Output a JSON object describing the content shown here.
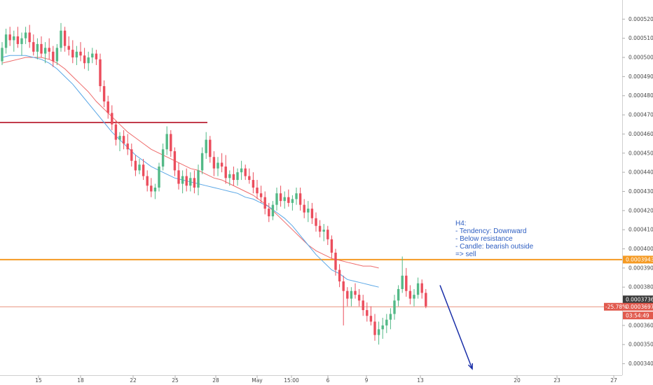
{
  "chart_data": {
    "type": "candlestick",
    "title": "",
    "y_range": [
      0.000334,
      0.00053
    ],
    "y_ticks": [
      "0.00034000",
      "0.00035000",
      "0.00036000",
      "0.00038000",
      "0.00039000",
      "0.00040000",
      "0.00041000",
      "0.00042000",
      "0.00043000",
      "0.00044000",
      "0.00045000",
      "0.00046000",
      "0.00047000",
      "0.00048000",
      "0.00049000",
      "0.00050000",
      "0.00051000",
      "0.00052000"
    ],
    "x_ticks": [
      "15",
      "18",
      "22",
      "25",
      "28",
      "May",
      "15:00",
      "6",
      "9",
      "13",
      "20",
      "23",
      "27"
    ],
    "grid": false,
    "bull_color": "#53b987",
    "bear_color": "#eb4d5c",
    "ma_fast_color": "#5aa7e6",
    "ma_slow_color": "#ee6a6a",
    "candles": [
      [
        0.000498,
        0.000508,
        0.000496,
        0.000505
      ],
      [
        0.000505,
        0.000515,
        0.000502,
        0.000512
      ],
      [
        0.000512,
        0.000516,
        0.000506,
        0.000509
      ],
      [
        0.000509,
        0.000514,
        0.000503,
        0.000511
      ],
      [
        0.000511,
        0.000516,
        0.000505,
        0.000507
      ],
      [
        0.000507,
        0.000513,
        0.000501,
        0.00051
      ],
      [
        0.00051,
        0.000516,
        0.000507,
        0.000513
      ],
      [
        0.000513,
        0.000517,
        0.000505,
        0.000508
      ],
      [
        0.000508,
        0.000512,
        0.000501,
        0.000503
      ],
      [
        0.000503,
        0.00051,
        0.000499,
        0.000507
      ],
      [
        0.000507,
        0.000511,
        0.0005,
        0.000502
      ],
      [
        0.000502,
        0.000508,
        0.000497,
        0.000505
      ],
      [
        0.000505,
        0.00051,
        0.000499,
        0.000503
      ],
      [
        0.000503,
        0.000506,
        0.000495,
        0.000498
      ],
      [
        0.000498,
        0.000507,
        0.000496,
        0.000505
      ],
      [
        0.000505,
        0.000518,
        0.000503,
        0.000514
      ],
      [
        0.000514,
        0.000516,
        0.000503,
        0.000506
      ],
      [
        0.000506,
        0.000511,
        0.000501,
        0.000504
      ],
      [
        0.000504,
        0.000509,
        0.000497,
        0.0005
      ],
      [
        0.0005,
        0.000506,
        0.000496,
        0.000503
      ],
      [
        0.000503,
        0.000508,
        0.000498,
        0.000501
      ],
      [
        0.000501,
        0.000505,
        0.000494,
        0.000497
      ],
      [
        0.000497,
        0.000503,
        0.000493,
        0.0005
      ],
      [
        0.0005,
        0.000505,
        0.000497,
        0.000502
      ],
      [
        0.000502,
        0.000504,
        0.000496,
        0.000499
      ],
      [
        0.000499,
        0.000502,
        0.000482,
        0.000485
      ],
      [
        0.000485,
        0.000488,
        0.000474,
        0.000477
      ],
      [
        0.000477,
        0.00048,
        0.000468,
        0.000471
      ],
      [
        0.000471,
        0.000475,
        0.000462,
        0.000465
      ],
      [
        0.000465,
        0.000467,
        0.000454,
        0.000457
      ],
      [
        0.000457,
        0.000461,
        0.000451,
        0.000459
      ],
      [
        0.000459,
        0.000462,
        0.000452,
        0.000455
      ],
      [
        0.000455,
        0.00046,
        0.000449,
        0.000452
      ],
      [
        0.000452,
        0.000455,
        0.000443,
        0.000446
      ],
      [
        0.000446,
        0.000449,
        0.000438,
        0.000441
      ],
      [
        0.000441,
        0.000447,
        0.000439,
        0.000444
      ],
      [
        0.000444,
        0.000447,
        0.000436,
        0.000438
      ],
      [
        0.000438,
        0.000441,
        0.00043,
        0.000433
      ],
      [
        0.000433,
        0.000437,
        0.000427,
        0.00043
      ],
      [
        0.00043,
        0.000434,
        0.000426,
        0.000432
      ],
      [
        0.000432,
        0.000445,
        0.00043,
        0.000443
      ],
      [
        0.000443,
        0.000455,
        0.000441,
        0.000452
      ],
      [
        0.000452,
        0.000464,
        0.000449,
        0.00046
      ],
      [
        0.00046,
        0.000462,
        0.000448,
        0.000451
      ],
      [
        0.000451,
        0.000453,
        0.000438,
        0.000441
      ],
      [
        0.000441,
        0.000445,
        0.000431,
        0.000434
      ],
      [
        0.000434,
        0.000441,
        0.000429,
        0.000438
      ],
      [
        0.000438,
        0.000442,
        0.00043,
        0.000433
      ],
      [
        0.000433,
        0.00044,
        0.00043,
        0.000437
      ],
      [
        0.000437,
        0.000441,
        0.000429,
        0.000432
      ],
      [
        0.000432,
        0.000444,
        0.000428,
        0.000441
      ],
      [
        0.000441,
        0.000453,
        0.000439,
        0.00045
      ],
      [
        0.00045,
        0.000461,
        0.000447,
        0.000457
      ],
      [
        0.000457,
        0.000459,
        0.000445,
        0.000448
      ],
      [
        0.000448,
        0.000451,
        0.000438,
        0.000442
      ],
      [
        0.000442,
        0.000448,
        0.000438,
        0.000445
      ],
      [
        0.000445,
        0.00045,
        0.00044,
        0.000443
      ],
      [
        0.000443,
        0.000449,
        0.000434,
        0.000437
      ],
      [
        0.000437,
        0.000441,
        0.000433,
        0.000439
      ],
      [
        0.000439,
        0.000443,
        0.000433,
        0.000436
      ],
      [
        0.000436,
        0.000442,
        0.000433,
        0.00044
      ],
      [
        0.00044,
        0.000446,
        0.000436,
        0.000442
      ],
      [
        0.000442,
        0.000444,
        0.000436,
        0.000438
      ],
      [
        0.000438,
        0.000442,
        0.000434,
        0.000436
      ],
      [
        0.000436,
        0.00044,
        0.000429,
        0.000432
      ],
      [
        0.000432,
        0.000436,
        0.000426,
        0.000429
      ],
      [
        0.000429,
        0.000433,
        0.000424,
        0.000427
      ],
      [
        0.000427,
        0.00043,
        0.000418,
        0.000421
      ],
      [
        0.000421,
        0.000424,
        0.000414,
        0.000417
      ],
      [
        0.000417,
        0.000425,
        0.000415,
        0.000423
      ],
      [
        0.000423,
        0.000432,
        0.00042,
        0.000429
      ],
      [
        0.000429,
        0.000433,
        0.000422,
        0.000425
      ],
      [
        0.000425,
        0.00043,
        0.000421,
        0.000427
      ],
      [
        0.000427,
        0.000431,
        0.000422,
        0.000424
      ],
      [
        0.000424,
        0.000428,
        0.00042,
        0.000426
      ],
      [
        0.000426,
        0.000432,
        0.000423,
        0.000429
      ],
      [
        0.000429,
        0.000432,
        0.00042,
        0.000423
      ],
      [
        0.000423,
        0.000426,
        0.000416,
        0.000419
      ],
      [
        0.000419,
        0.000425,
        0.000414,
        0.000421
      ],
      [
        0.000421,
        0.000424,
        0.000413,
        0.000416
      ],
      [
        0.000416,
        0.000419,
        0.000409,
        0.000412
      ],
      [
        0.000412,
        0.000415,
        0.000406,
        0.000409
      ],
      [
        0.000409,
        0.000413,
        0.000404,
        0.00041
      ],
      [
        0.00041,
        0.000412,
        0.000402,
        0.000405
      ],
      [
        0.000405,
        0.000407,
        0.000395,
        0.000398
      ],
      [
        0.000398,
        0.0004,
        0.000386,
        0.000389
      ],
      [
        0.000389,
        0.000392,
        0.00038,
        0.000383
      ],
      [
        0.000383,
        0.000386,
        0.00036,
        0.000378
      ],
      [
        0.000378,
        0.00038,
        0.00037,
        0.000374
      ],
      [
        0.000374,
        0.00038,
        0.00037,
        0.000378
      ],
      [
        0.000378,
        0.000382,
        0.000374,
        0.000376
      ],
      [
        0.000376,
        0.000379,
        0.00037,
        0.000373
      ],
      [
        0.000373,
        0.000376,
        0.000365,
        0.000368
      ],
      [
        0.000368,
        0.000372,
        0.000362,
        0.000365
      ],
      [
        0.000365,
        0.00037,
        0.00036,
        0.000362
      ],
      [
        0.000362,
        0.000366,
        0.000352,
        0.000355
      ],
      [
        0.000355,
        0.000362,
        0.00035,
        0.000358
      ],
      [
        0.000358,
        0.000364,
        0.000353,
        0.00036
      ],
      [
        0.00036,
        0.000366,
        0.000356,
        0.000363
      ],
      [
        0.000363,
        0.000369,
        0.000358,
        0.000366
      ],
      [
        0.000366,
        0.000376,
        0.000363,
        0.000373
      ],
      [
        0.000373,
        0.000381,
        0.00037,
        0.000379
      ],
      [
        0.000379,
        0.000396,
        0.000377,
        0.000386
      ],
      [
        0.000386,
        0.00039,
        0.000375,
        0.000378
      ],
      [
        0.000378,
        0.000381,
        0.000371,
        0.000374
      ],
      [
        0.000374,
        0.000379,
        0.00037,
        0.000376
      ],
      [
        0.000376,
        0.000385,
        0.000374,
        0.000382
      ],
      [
        0.000382,
        0.000384,
        0.000374,
        0.000377
      ],
      [
        0.000377,
        0.000379,
        0.000369,
        0.00037
      ]
    ],
    "ma_fast": [
      0.0005,
      0.000501,
      0.000501,
      0.000501,
      0.0005,
      0.000499,
      0.000497,
      0.000494,
      0.00049,
      0.000486,
      0.000481,
      0.000476,
      0.000471,
      0.000466,
      0.000461,
      0.000457,
      0.000453,
      0.000449,
      0.000446,
      0.000443,
      0.000441,
      0.000439,
      0.000437,
      0.000436,
      0.000435,
      0.000434,
      0.000433,
      0.000432,
      0.000431,
      0.00043,
      0.000429,
      0.000427,
      0.000426,
      0.000424,
      0.000422,
      0.000419,
      0.000416,
      0.000412,
      0.000407,
      0.000402,
      0.000397,
      0.000393,
      0.000389,
      0.000387,
      0.000384,
      0.000383,
      0.000382,
      0.000381,
      0.00038
    ],
    "ma_slow": [
      0.000497,
      0.000498,
      0.000499,
      0.0005,
      0.0005,
      0.0005,
      0.000499,
      0.000497,
      0.000494,
      0.00049,
      0.000486,
      0.000482,
      0.000477,
      0.000473,
      0.000469,
      0.000465,
      0.000461,
      0.000458,
      0.000455,
      0.000452,
      0.00045,
      0.000448,
      0.000446,
      0.000444,
      0.000442,
      0.000441,
      0.000439,
      0.000437,
      0.000436,
      0.000434,
      0.000432,
      0.00043,
      0.000428,
      0.000425,
      0.000422,
      0.000418,
      0.000414,
      0.00041,
      0.000406,
      0.000402,
      0.000399,
      0.000397,
      0.000395,
      0.000394,
      0.000393,
      0.000392,
      0.000391,
      0.000391,
      0.00039
    ],
    "levels": [
      {
        "name": "resistance",
        "value": 0.00039439,
        "color": "#f59a23",
        "label": "0.00039439",
        "extends_full_width": true
      },
      {
        "name": "old-resistance",
        "value": 0.000466,
        "color": "#c23c4c",
        "extends_full_width": false
      },
      {
        "name": "last-price",
        "value": 0.00036975,
        "color": "#e8917f",
        "label": "0.00036975",
        "extends_full_width": true
      }
    ],
    "price_badges": [
      {
        "label": "0.00037360",
        "value": 0.0003736,
        "color": "#3b3b3b"
      },
      {
        "label": "0.00039439",
        "value": 0.00039439,
        "color": "#f59a23"
      },
      {
        "label": "0.00036975",
        "value": 0.00036975,
        "color": "#e15a4e"
      },
      {
        "label": "03:54:49",
        "value": 0.0003652,
        "color": "#e15a4e"
      }
    ],
    "change_badge": {
      "label": "-25.78%",
      "color": "#e15a4e"
    },
    "annotation": {
      "lines": [
        "H4:",
        "- Tendency: Downward",
        "- Below resistance",
        "- Candle: bearish outside",
        "=> sell"
      ],
      "color": "#2f5fc2"
    },
    "arrow": {
      "color": "#1a2fa8",
      "from_value": 0.000381,
      "to_value": 0.000334
    }
  }
}
